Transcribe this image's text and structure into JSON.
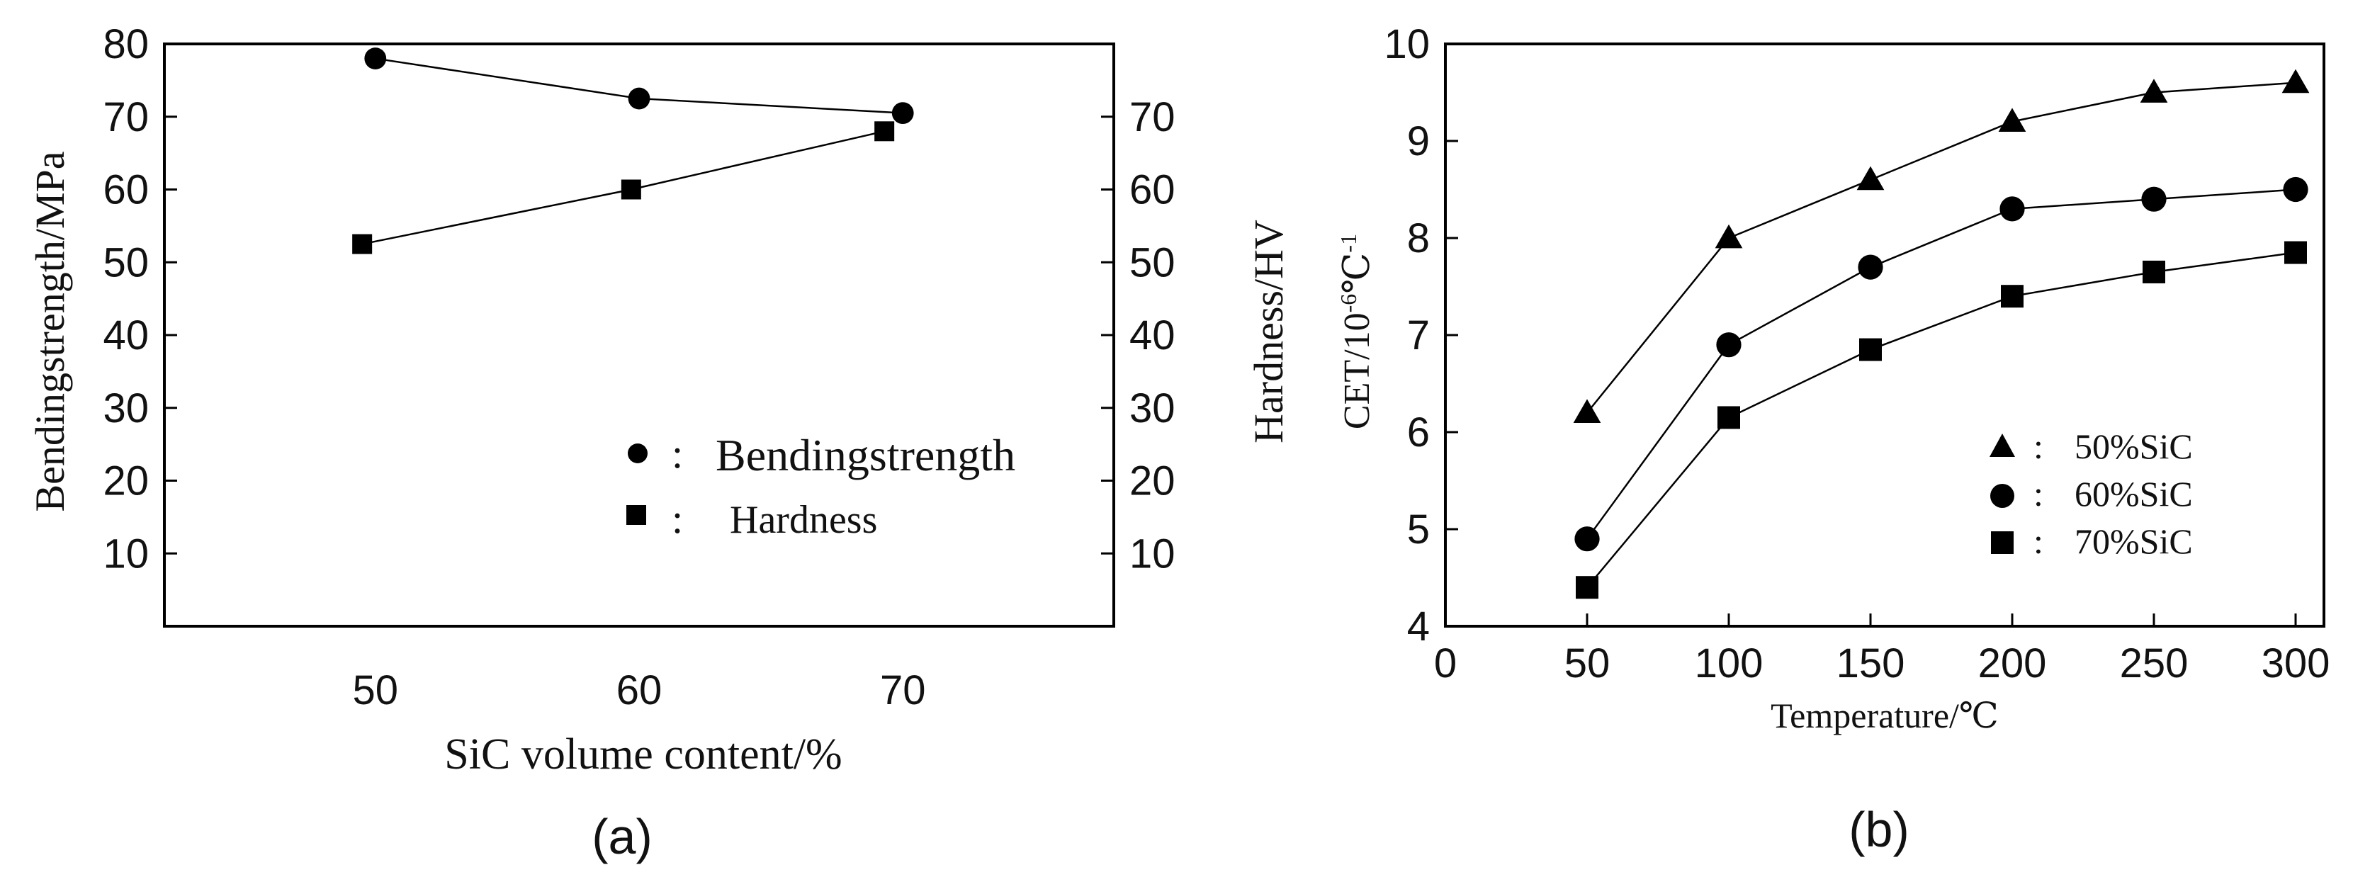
{
  "chart_data": [
    {
      "type": "line",
      "panel_label": "(a)",
      "xlabel": "SiC volume content/%",
      "ylabel_left": "Bendingstrength/MPa",
      "ylabel_right": "Hardness/HV",
      "x_ticks": [
        "50",
        "60",
        "70"
      ],
      "y_left_ticks": [
        "10",
        "20",
        "30",
        "40",
        "50",
        "60",
        "70",
        "80"
      ],
      "y_right_ticks": [
        "10",
        "20",
        "30",
        "40",
        "50",
        "60",
        "70"
      ],
      "xlim": [
        42,
        78
      ],
      "ylim_left": [
        0,
        80
      ],
      "ylim_right": [
        0,
        80
      ],
      "series": [
        {
          "name": "Bendingstrength",
          "marker": "circle",
          "axis": "left",
          "x": [
            50,
            60,
            70
          ],
          "values": [
            78,
            72.5,
            70.5
          ]
        },
        {
          "name": "Hardness",
          "marker": "square",
          "axis": "right",
          "x": [
            49.5,
            59.7,
            69.3
          ],
          "values": [
            52.5,
            60,
            68
          ]
        }
      ],
      "legend": [
        {
          "marker": "circle",
          "sep": ":",
          "label": "Bendingstrength"
        },
        {
          "marker": "square",
          "sep": ":",
          "label": "Hardness"
        }
      ]
    },
    {
      "type": "line",
      "panel_label": "(b)",
      "xlabel": "Temperature/℃",
      "ylabel": "CET/10-6℃-1",
      "ylabel_parts": {
        "base": "CET/10",
        "exp1": "-6",
        "mid": "℃",
        "exp2": "-1"
      },
      "x_ticks": [
        "0",
        "50",
        "100",
        "150",
        "200",
        "250",
        "300"
      ],
      "y_ticks": [
        "4",
        "5",
        "6",
        "7",
        "8",
        "9",
        "10"
      ],
      "xlim": [
        0,
        310
      ],
      "ylim": [
        4,
        10
      ],
      "series": [
        {
          "name": "50%SiC",
          "marker": "triangle",
          "x": [
            50,
            100,
            150,
            200,
            250,
            300
          ],
          "values": [
            6.2,
            8.0,
            8.6,
            9.2,
            9.5,
            9.6
          ]
        },
        {
          "name": "60%SiC",
          "marker": "circle",
          "x": [
            50,
            100,
            150,
            200,
            250,
            300
          ],
          "values": [
            4.9,
            6.9,
            7.7,
            8.3,
            8.4,
            8.5
          ]
        },
        {
          "name": "70%SiC",
          "marker": "square",
          "x": [
            50,
            100,
            150,
            200,
            250,
            300
          ],
          "values": [
            4.4,
            6.15,
            6.85,
            7.4,
            7.65,
            7.85
          ]
        }
      ],
      "legend": [
        {
          "marker": "triangle",
          "sep": ":",
          "label": "50%SiC"
        },
        {
          "marker": "circle",
          "sep": ":",
          "label": "60%SiC"
        },
        {
          "marker": "square",
          "sep": ":",
          "label": "70%SiC"
        }
      ]
    }
  ]
}
